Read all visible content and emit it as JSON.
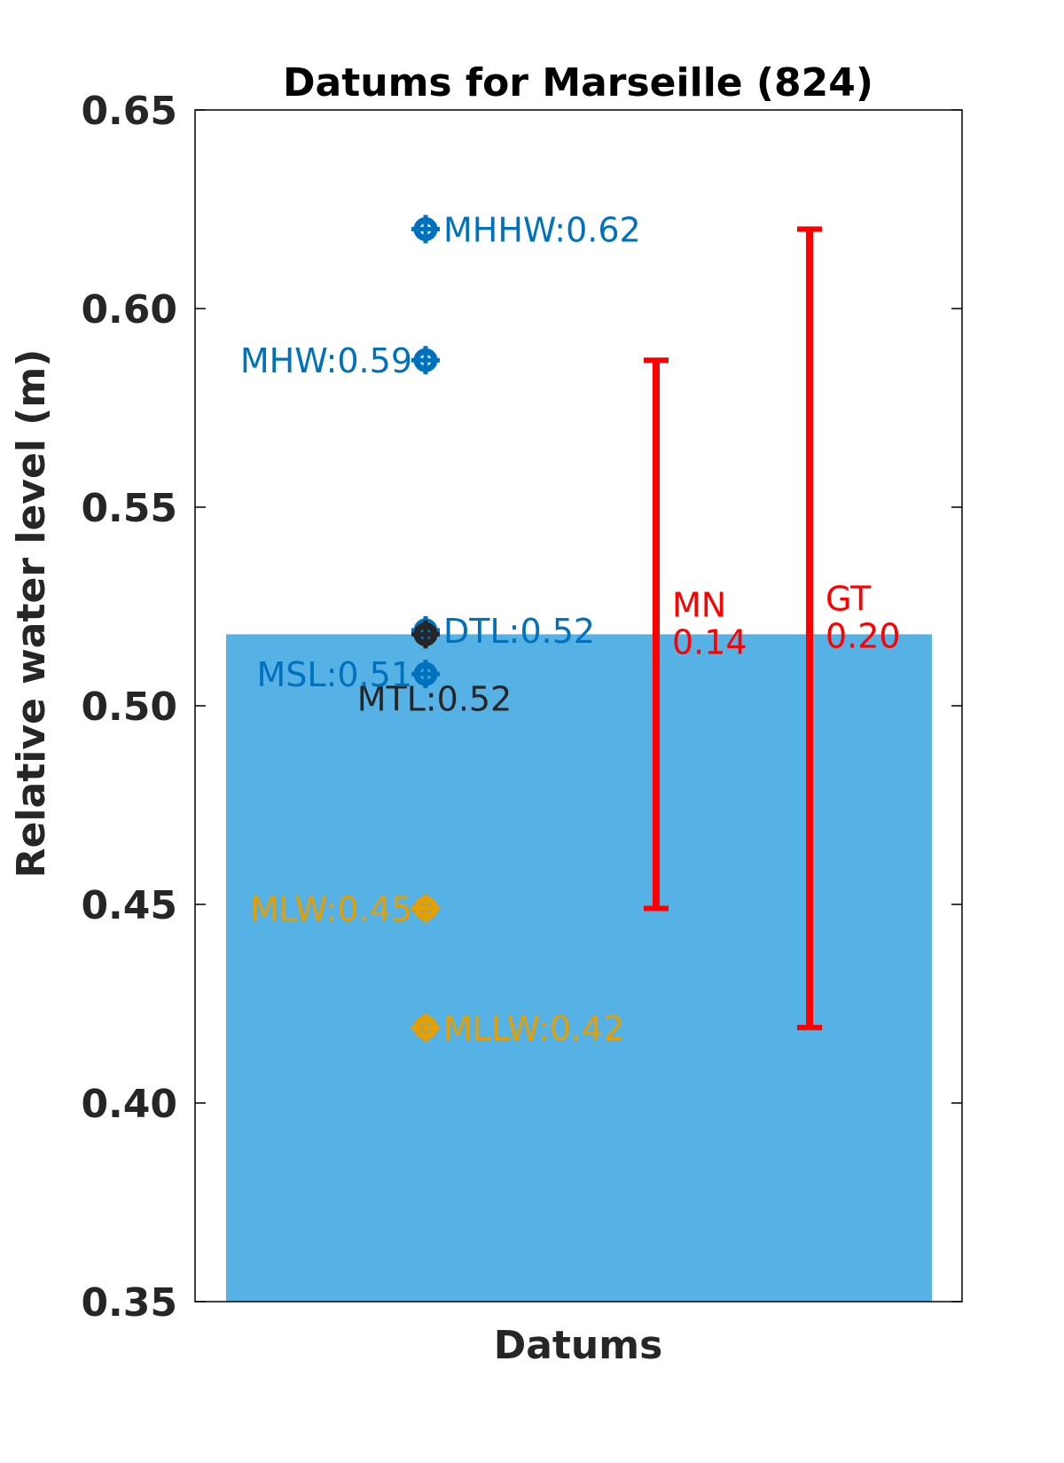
{
  "chart_data": {
    "type": "bar",
    "title": "Datums for Marseille (824)",
    "xlabel": "Datums",
    "ylabel": "Relative water level (m)",
    "ylim": [
      0.35,
      0.65
    ],
    "yticks": [
      0.35,
      0.4,
      0.45,
      0.5,
      0.55,
      0.6,
      0.65
    ],
    "ytick_labels": [
      "0.35",
      "0.40",
      "0.45",
      "0.50",
      "0.55",
      "0.60",
      "0.65"
    ],
    "grid": false,
    "bar": {
      "value": 0.518,
      "color": "#56B1E5"
    },
    "datums": [
      {
        "name": "MHHW",
        "value": 0.62,
        "label": "MHHW:0.62",
        "color": "#0072BD",
        "side": "right"
      },
      {
        "name": "MHW",
        "value": 0.587,
        "label": "MHW:0.59",
        "color": "#0072BD",
        "side": "left"
      },
      {
        "name": "DTL",
        "value": 0.519,
        "label": "DTL:0.52",
        "color": "#0072BD",
        "side": "right"
      },
      {
        "name": "MTL",
        "value": 0.518,
        "label": "MTL:0.52",
        "color": "#262626",
        "side": "below"
      },
      {
        "name": "MSL",
        "value": 0.508,
        "label": "MSL:0.51",
        "color": "#0072BD",
        "side": "left"
      },
      {
        "name": "MLW",
        "value": 0.449,
        "label": "MLW:0.45",
        "color": "#E69F00",
        "side": "left"
      },
      {
        "name": "MLLW",
        "value": 0.419,
        "label": "MLLW:0.42",
        "color": "#E69F00",
        "side": "right"
      }
    ],
    "ranges": [
      {
        "name": "MN",
        "value_label": "0.14",
        "low": 0.449,
        "high": 0.587,
        "color": "#FF0000"
      },
      {
        "name": "GT",
        "value_label": "0.20",
        "low": 0.419,
        "high": 0.62,
        "color": "#FF0000"
      }
    ]
  }
}
